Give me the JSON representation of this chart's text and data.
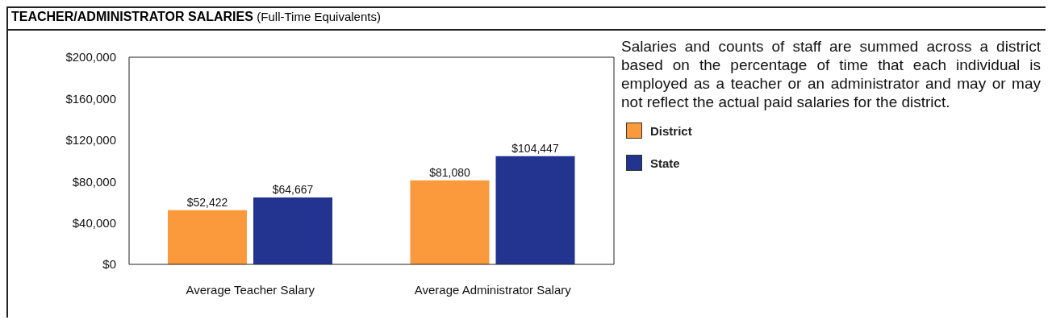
{
  "chart_data": {
    "type": "bar",
    "title": "TEACHER/ADMINISTRATOR SALARIES",
    "subtitle": "(Full-Time Equivalents)",
    "annotations": [
      "Salaries and counts of staff are summed across a district based on the percentage of time that each individual is employed as a teacher or an administrator and may or may not reflect the actual paid salaries for the district."
    ],
    "categories": [
      "Average Teacher Salary",
      "Average Administrator Salary"
    ],
    "series": [
      {
        "name": "District",
        "color": "#fb9a3c",
        "values": [
          52422,
          81080
        ],
        "value_labels": [
          "$52,422",
          "$81,080"
        ]
      },
      {
        "name": "State",
        "color": "#22348f",
        "values": [
          64667,
          104447
        ],
        "value_labels": [
          "$64,667",
          "$104,447"
        ]
      }
    ],
    "ylim": [
      0,
      200000
    ],
    "yticks": [
      {
        "value": 0,
        "label": "$0"
      },
      {
        "value": 40000,
        "label": "$40,000"
      },
      {
        "value": 80000,
        "label": "$80,000"
      },
      {
        "value": 120000,
        "label": "$120,000"
      },
      {
        "value": 160000,
        "label": "$160,000"
      },
      {
        "value": 200000,
        "label": "$200,000"
      }
    ],
    "grid": false,
    "legend": "right"
  }
}
